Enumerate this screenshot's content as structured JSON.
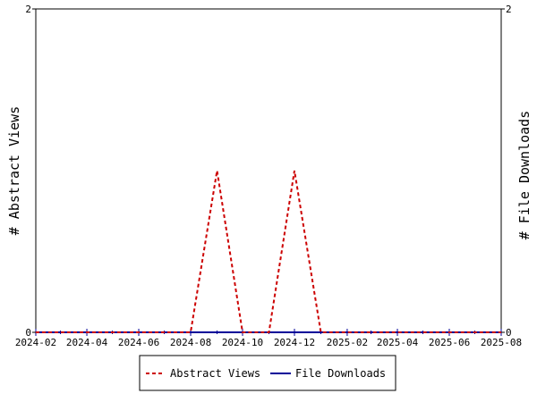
{
  "chart_data": {
    "type": "line",
    "x_axis": {
      "type": "date",
      "ticks": [
        "2024-02",
        "2024-04",
        "2024-06",
        "2024-08",
        "2024-10",
        "2024-12",
        "2025-02",
        "2025-04",
        "2025-06",
        "2025-08"
      ],
      "range": [
        "2024-02-01",
        "2025-08-01"
      ]
    },
    "y_left": {
      "label": "# Abstract Views",
      "range": [
        0,
        2
      ],
      "ticks": [
        "0",
        "2"
      ]
    },
    "y_right": {
      "label": "# File Downloads",
      "range": [
        0,
        2
      ],
      "ticks": [
        "0",
        "2"
      ]
    },
    "series": [
      {
        "name": "Abstract Views",
        "axis": "left",
        "color": "#cc0000",
        "style": "dashed",
        "points": [
          {
            "x": "2024-02-01",
            "y": 0
          },
          {
            "x": "2024-08-01",
            "y": 0
          },
          {
            "x": "2024-09-01",
            "y": 1
          },
          {
            "x": "2024-10-01",
            "y": 0
          },
          {
            "x": "2024-11-01",
            "y": 0
          },
          {
            "x": "2024-12-01",
            "y": 1
          },
          {
            "x": "2025-01-01",
            "y": 0
          },
          {
            "x": "2025-08-01",
            "y": 0
          }
        ]
      },
      {
        "name": "File Downloads",
        "axis": "right",
        "color": "#000099",
        "style": "solid",
        "points": [
          {
            "x": "2024-02-01",
            "y": 0
          },
          {
            "x": "2025-08-01",
            "y": 0
          }
        ]
      }
    ],
    "grid": false,
    "legend": "bottom-center"
  }
}
